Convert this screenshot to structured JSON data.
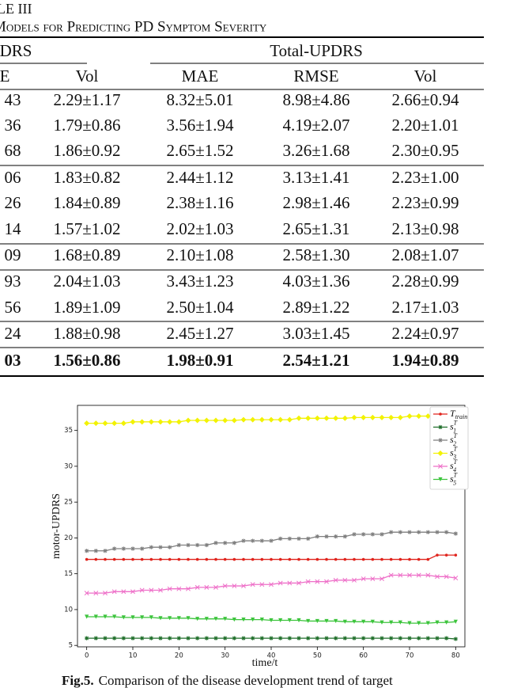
{
  "header": {
    "label": "LE III",
    "title": "Models for Predicting PD Symptom Severity"
  },
  "table": {
    "group_headers": [
      "DRS",
      "Total-UPDRS"
    ],
    "headers": [
      "E",
      "Vol",
      "MAE",
      "RMSE",
      "Vol"
    ],
    "rows": [
      [
        "43",
        "2.29±1.17",
        "8.32±5.01",
        "8.98±4.86",
        "2.66±0.94"
      ],
      [
        "36",
        "1.79±0.86",
        "3.56±1.94",
        "4.19±2.07",
        "2.20±1.01"
      ],
      [
        "68",
        "1.86±0.92",
        "2.65±1.52",
        "3.26±1.68",
        "2.30±0.95"
      ],
      [
        "06",
        "1.83±0.82",
        "2.44±1.12",
        "3.13±1.41",
        "2.23±1.00"
      ],
      [
        "26",
        "1.84±0.89",
        "2.38±1.16",
        "2.98±1.46",
        "2.23±0.99"
      ],
      [
        "14",
        "1.57±1.02",
        "2.02±1.03",
        "2.65±1.31",
        "2.13±0.98"
      ],
      [
        "09",
        "1.68±0.89",
        "2.10±1.08",
        "2.58±1.30",
        "2.08±1.07"
      ],
      [
        "93",
        "2.04±1.03",
        "3.43±1.23",
        "4.03±1.36",
        "2.28±0.99"
      ],
      [
        "56",
        "1.89±1.09",
        "2.50±1.04",
        "2.89±1.22",
        "2.17±1.03"
      ],
      [
        "24",
        "1.88±0.98",
        "2.45±1.27",
        "3.03±1.45",
        "2.24±0.97"
      ],
      [
        "03",
        "1.56±0.86",
        "1.98±0.91",
        "2.54±1.21",
        "1.94±0.89"
      ]
    ]
  },
  "chart_data": {
    "type": "line",
    "x_label": "time/t",
    "y_label": "motor-UPDRS",
    "xlim": [
      -2,
      82
    ],
    "ylim": [
      4.8,
      38.5
    ],
    "xticks": [
      0,
      10,
      20,
      30,
      40,
      50,
      60,
      70,
      80
    ],
    "yticks": [
      5,
      10,
      15,
      20,
      25,
      30,
      35
    ],
    "grid": false,
    "legend": "upper right",
    "x": [
      0,
      2,
      4,
      6,
      8,
      10,
      12,
      14,
      16,
      18,
      20,
      22,
      24,
      26,
      28,
      30,
      32,
      34,
      36,
      38,
      40,
      42,
      44,
      46,
      48,
      50,
      52,
      54,
      56,
      58,
      60,
      62,
      64,
      66,
      68,
      70,
      72,
      74,
      76,
      78,
      80
    ],
    "series": [
      {
        "name": "T",
        "sub": "train",
        "color": "#e0231c",
        "marker": "circle",
        "values": [
          17,
          17,
          17,
          17,
          17,
          17,
          17,
          17,
          17,
          17,
          17,
          17,
          17,
          17,
          17,
          17,
          17,
          17,
          17,
          17,
          17,
          17,
          17,
          17,
          17,
          17,
          17,
          17,
          17,
          17,
          17,
          17,
          17,
          17,
          17,
          17,
          17,
          17,
          17.6,
          17.6,
          17.6
        ]
      },
      {
        "name": "s",
        "sub": "1",
        "sup": "T",
        "color": "#1f6e2a",
        "marker": "star",
        "values": [
          6,
          6,
          6,
          6,
          6,
          6,
          6,
          6,
          6,
          6,
          6,
          6,
          6,
          6,
          6,
          6,
          6,
          6,
          6,
          6,
          6,
          6,
          6,
          6,
          6,
          6,
          6,
          6,
          6,
          6,
          6,
          6,
          6,
          6,
          6,
          6,
          6,
          6,
          6,
          6,
          5.9
        ]
      },
      {
        "name": "s",
        "sub": "2",
        "sup": "T",
        "color": "#7f7f7f",
        "marker": "star",
        "values": [
          18.2,
          18.2,
          18.2,
          18.5,
          18.5,
          18.5,
          18.5,
          18.7,
          18.7,
          18.7,
          19.0,
          19.0,
          19.0,
          19.0,
          19.3,
          19.3,
          19.3,
          19.6,
          19.6,
          19.6,
          19.6,
          19.9,
          19.9,
          19.9,
          19.9,
          20.2,
          20.2,
          20.2,
          20.2,
          20.5,
          20.5,
          20.5,
          20.5,
          20.8,
          20.8,
          20.8,
          20.8,
          20.8,
          20.8,
          20.8,
          20.6
        ]
      },
      {
        "name": "s",
        "sub": "3",
        "sup": "T",
        "color": "#f2f200",
        "marker": "diamond",
        "values": [
          36.0,
          36.0,
          36.0,
          36.0,
          36.0,
          36.2,
          36.2,
          36.2,
          36.2,
          36.2,
          36.2,
          36.4,
          36.4,
          36.4,
          36.4,
          36.4,
          36.4,
          36.5,
          36.5,
          36.5,
          36.5,
          36.5,
          36.5,
          36.7,
          36.7,
          36.7,
          36.7,
          36.7,
          36.7,
          36.8,
          36.8,
          36.8,
          36.8,
          36.8,
          36.8,
          37.0,
          37.0,
          37.0,
          37.0,
          37.0,
          37.0
        ]
      },
      {
        "name": "s",
        "sub": "4",
        "sup": "T",
        "color": "#ee6fc8",
        "marker": "cross",
        "values": [
          12.3,
          12.3,
          12.3,
          12.5,
          12.5,
          12.5,
          12.7,
          12.7,
          12.7,
          12.9,
          12.9,
          12.9,
          13.1,
          13.1,
          13.1,
          13.3,
          13.3,
          13.3,
          13.5,
          13.5,
          13.5,
          13.7,
          13.7,
          13.7,
          13.9,
          13.9,
          13.9,
          14.1,
          14.1,
          14.1,
          14.3,
          14.3,
          14.3,
          14.8,
          14.8,
          14.8,
          14.8,
          14.8,
          14.6,
          14.6,
          14.4
        ]
      },
      {
        "name": "s",
        "sub": "5",
        "sup": "T",
        "color": "#3cc43c",
        "marker": "triangle",
        "values": [
          9.0,
          9.0,
          9.0,
          9.0,
          8.9,
          8.9,
          8.9,
          8.9,
          8.8,
          8.8,
          8.8,
          8.8,
          8.7,
          8.7,
          8.7,
          8.7,
          8.6,
          8.6,
          8.6,
          8.6,
          8.5,
          8.5,
          8.5,
          8.5,
          8.4,
          8.4,
          8.4,
          8.4,
          8.3,
          8.3,
          8.3,
          8.3,
          8.2,
          8.2,
          8.2,
          8.1,
          8.1,
          8.1,
          8.2,
          8.2,
          8.3
        ]
      }
    ]
  },
  "caption": {
    "label": "Fig.5.",
    "text": "Comparison of the disease development trend of target"
  }
}
